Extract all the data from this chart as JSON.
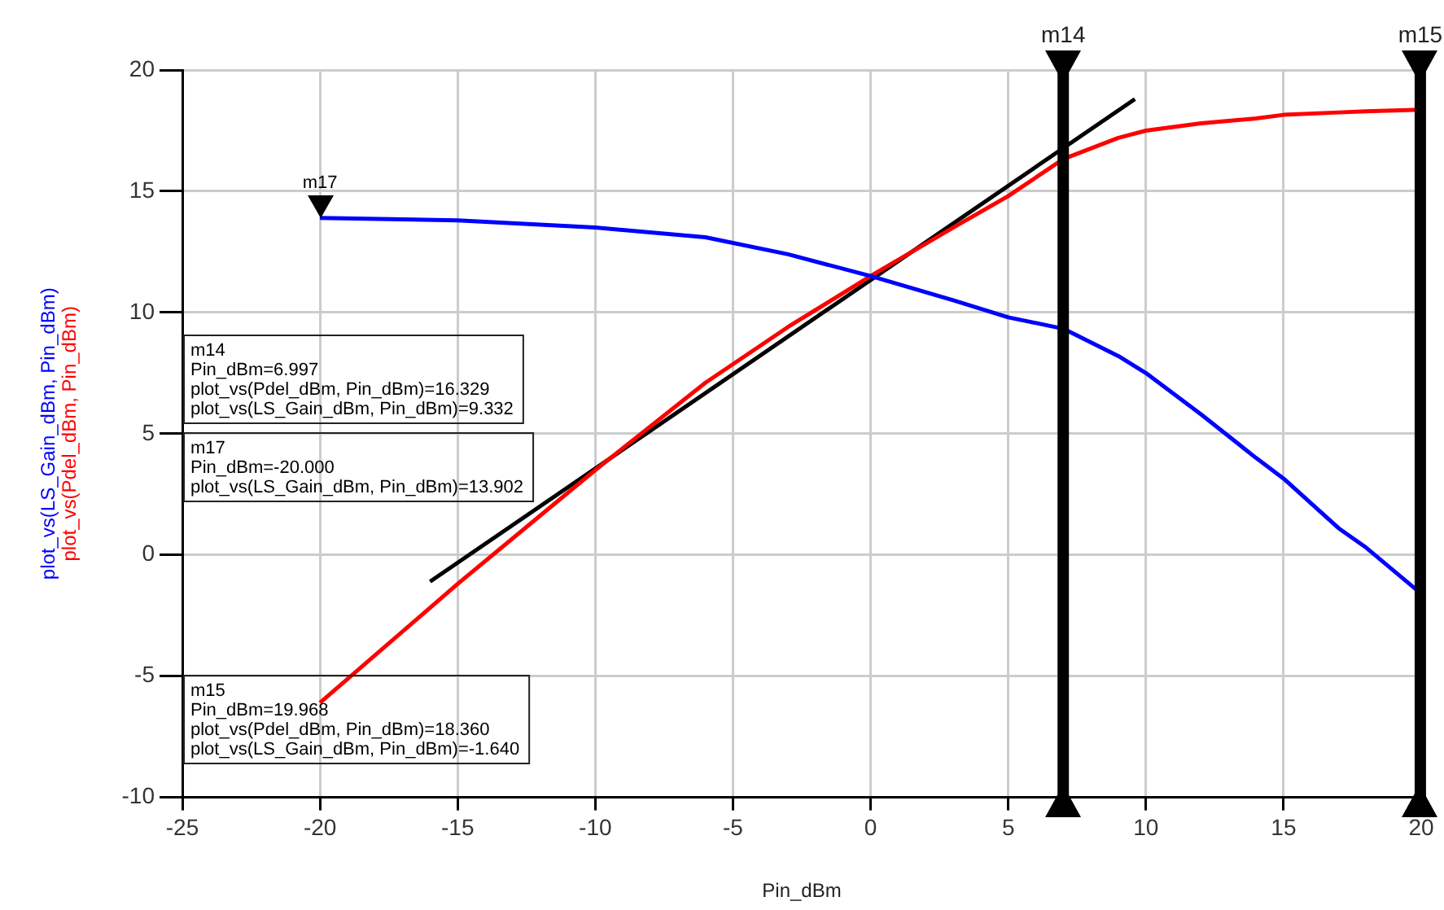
{
  "chart_data": {
    "type": "line",
    "xlabel": "Pin_dBm",
    "xlim": [
      -25,
      20
    ],
    "xticks": [
      -25,
      -20,
      -15,
      -10,
      -5,
      0,
      5,
      10,
      15,
      20
    ],
    "ylim": [
      -10,
      20
    ],
    "yticks": [
      -10,
      -5,
      0,
      5,
      10,
      15,
      20
    ],
    "grid": true,
    "legend": false,
    "marker": "none",
    "line_style": "solid",
    "series": [
      {
        "name": "plot_vs(LS_Gain_dBm, Pin_dBm)",
        "color": "#0000ff",
        "x": [
          -20,
          -15,
          -10,
          -6,
          -3,
          0,
          3,
          5,
          7,
          9,
          10,
          12,
          14,
          15,
          17,
          18,
          20
        ],
        "values": [
          13.9,
          13.8,
          13.5,
          13.1,
          12.4,
          11.5,
          10.5,
          9.8,
          9.33,
          8.2,
          7.5,
          5.8,
          4.0,
          3.15,
          1.1,
          0.3,
          -1.6
        ]
      },
      {
        "name": "plot_vs(Pdel_dBm, Pin_dBm)",
        "color": "#ff0000",
        "x": [
          -20,
          -15,
          -10,
          -6,
          -3,
          0,
          3,
          5,
          7,
          9,
          10,
          12,
          14,
          15,
          17,
          18,
          20
        ],
        "values": [
          -6.1,
          -1.2,
          3.5,
          7.1,
          9.4,
          11.5,
          13.5,
          14.8,
          16.33,
          17.2,
          17.5,
          17.8,
          18.0,
          18.15,
          18.25,
          18.3,
          18.36
        ]
      },
      {
        "color": "#000000",
        "x": [
          -16,
          9.6
        ],
        "values": [
          -1.1,
          18.8
        ]
      }
    ],
    "ref_lines": [
      {
        "axis": "x",
        "value": 6.997,
        "label": "m14",
        "color": "#000000"
      },
      {
        "axis": "x",
        "value": 19.968,
        "label": "m15",
        "color": "#000000"
      }
    ],
    "annotations": [
      {
        "text": "m17",
        "x": -20,
        "y": 13.902
      },
      "m14\nPin_dBm=6.997\nplot_vs(Pdel_dBm, Pin_dBm)=16.329\nplot_vs(LS_Gain_dBm, Pin_dBm)=9.332",
      "m17\nPin_dBm=-20.000\nplot_vs(LS_Gain_dBm, Pin_dBm)=13.902",
      "m15\nPin_dBm=19.968\nplot_vs(Pdel_dBm, Pin_dBm)=18.360\nplot_vs(LS_Gain_dBm, Pin_dBm)=-1.640"
    ]
  }
}
